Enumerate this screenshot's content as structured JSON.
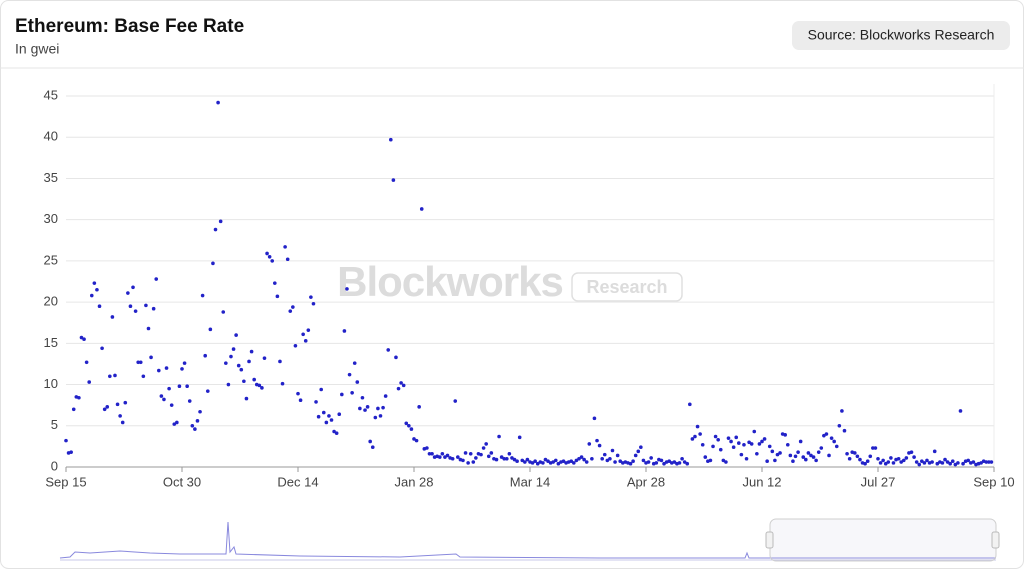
{
  "chart_data": {
    "type": "scatter",
    "title": "Ethereum: Base Fee Rate",
    "subtitle": "In gwei",
    "source": "Source: Blockworks Research",
    "watermark": "Blockworks",
    "watermark_tag": "Research",
    "color": "#2222c8",
    "grid": true,
    "xlim": [
      0,
      360
    ],
    "xticks": [
      {
        "value": 0,
        "label": "Sep 15"
      },
      {
        "value": 45,
        "label": "Oct 30"
      },
      {
        "value": 90,
        "label": "Dec 14"
      },
      {
        "value": 135,
        "label": "Jan 28"
      },
      {
        "value": 180,
        "label": "Mar 14"
      },
      {
        "value": 225,
        "label": "Apr 28"
      },
      {
        "value": 270,
        "label": "Jun 12"
      },
      {
        "value": 315,
        "label": "Jul 27"
      },
      {
        "value": 360,
        "label": "Sep 10"
      }
    ],
    "ylim": [
      0,
      45
    ],
    "yticks": [
      0,
      5,
      10,
      15,
      20,
      25,
      30,
      35,
      40,
      45
    ],
    "x": [
      0,
      1,
      2,
      3,
      4,
      5,
      6,
      7,
      8,
      9,
      10,
      11,
      12,
      13,
      14,
      15,
      16,
      17,
      18,
      19,
      20,
      21,
      22,
      23,
      24,
      25,
      26,
      27,
      28,
      29,
      30,
      31,
      32,
      33,
      34,
      35,
      36,
      37,
      38,
      39,
      40,
      41,
      42,
      43,
      44,
      45,
      46,
      47,
      48,
      49,
      50,
      51,
      52,
      53,
      54,
      55,
      56,
      57,
      58,
      59,
      60,
      61,
      62,
      63,
      64,
      65,
      66,
      67,
      68,
      69,
      70,
      71,
      72,
      73,
      74,
      75,
      76,
      77,
      78,
      79,
      80,
      81,
      82,
      83,
      84,
      85,
      86,
      87,
      88,
      89,
      90,
      91,
      92,
      93,
      94,
      95,
      96,
      97,
      98,
      99,
      100,
      101,
      102,
      103,
      104,
      105,
      106,
      107,
      108,
      109,
      110,
      111,
      112,
      113,
      114,
      115,
      116,
      117,
      118,
      119,
      120,
      121,
      122,
      123,
      124,
      125,
      126,
      127,
      128,
      129,
      130,
      131,
      132,
      133,
      134,
      135,
      136,
      137,
      138,
      139,
      140,
      141,
      142,
      143,
      144,
      145,
      146,
      147,
      148,
      149,
      150,
      151,
      152,
      153,
      154,
      155,
      156,
      157,
      158,
      159,
      160,
      161,
      162,
      163,
      164,
      165,
      166,
      167,
      168,
      169,
      170,
      171,
      172,
      173,
      174,
      175,
      176,
      177,
      178,
      179,
      180,
      181,
      182,
      183,
      184,
      185,
      186,
      187,
      188,
      189,
      190,
      191,
      192,
      193,
      194,
      195,
      196,
      197,
      198,
      199,
      200,
      201,
      202,
      203,
      204,
      205,
      206,
      207,
      208,
      209,
      210,
      211,
      212,
      213,
      214,
      215,
      216,
      217,
      218,
      219,
      220,
      221,
      222,
      223,
      224,
      225,
      226,
      227,
      228,
      229,
      230,
      231,
      232,
      233,
      234,
      235,
      236,
      237,
      238,
      239,
      240,
      241,
      242,
      243,
      244,
      245,
      246,
      247,
      248,
      249,
      250,
      251,
      252,
      253,
      254,
      255,
      256,
      257,
      258,
      259,
      260,
      261,
      262,
      263,
      264,
      265,
      266,
      267,
      268,
      269,
      270,
      271,
      272,
      273,
      274,
      275,
      276,
      277,
      278,
      279,
      280,
      281,
      282,
      283,
      284,
      285,
      286,
      287,
      288,
      289,
      290,
      291,
      292,
      293,
      294,
      295,
      296,
      297,
      298,
      299,
      300,
      301,
      302,
      303,
      304,
      305,
      306,
      307,
      308,
      309,
      310,
      311,
      312,
      313,
      314,
      315,
      316,
      317,
      318,
      319,
      320,
      321,
      322,
      323,
      324,
      325,
      326,
      327,
      328,
      329,
      330,
      331,
      332,
      333,
      334,
      335,
      336,
      337,
      338,
      339,
      340,
      341,
      342,
      343,
      344,
      345,
      346,
      347,
      348,
      349,
      350,
      351,
      352,
      353,
      354,
      355,
      356,
      357,
      358,
      359
    ],
    "values": [
      3.2,
      1.7,
      1.8,
      7.0,
      8.5,
      8.4,
      15.7,
      15.5,
      12.7,
      10.3,
      20.8,
      22.3,
      21.5,
      19.5,
      14.4,
      7.0,
      7.3,
      11.0,
      18.2,
      11.1,
      7.6,
      6.2,
      5.4,
      7.8,
      21.1,
      19.5,
      21.8,
      18.9,
      12.7,
      12.7,
      11.0,
      19.6,
      16.8,
      13.3,
      19.2,
      22.8,
      11.7,
      8.6,
      8.2,
      12.0,
      9.5,
      7.5,
      5.2,
      5.4,
      9.8,
      11.9,
      12.6,
      9.8,
      8.0,
      5.0,
      4.6,
      5.6,
      6.7,
      20.8,
      13.5,
      9.2,
      16.7,
      24.7,
      28.8,
      44.2,
      29.8,
      18.8,
      12.6,
      10.0,
      13.4,
      14.3,
      16.0,
      12.3,
      11.8,
      10.4,
      8.3,
      12.8,
      14.0,
      10.6,
      10.0,
      9.9,
      9.6,
      13.2,
      25.9,
      25.5,
      25.0,
      22.3,
      20.7,
      12.8,
      10.1,
      26.7,
      25.2,
      18.9,
      19.4,
      14.7,
      8.9,
      8.1,
      16.1,
      15.3,
      16.6,
      20.6,
      19.8,
      7.9,
      6.1,
      9.4,
      6.6,
      5.4,
      6.2,
      5.7,
      4.3,
      4.1,
      6.4,
      8.8,
      16.5,
      21.6,
      11.2,
      9.0,
      12.6,
      10.3,
      7.1,
      8.4,
      6.9,
      7.3,
      3.1,
      2.4,
      6.0,
      7.1,
      6.2,
      7.2,
      8.6,
      14.2,
      39.7,
      34.8,
      13.3,
      9.5,
      10.2,
      9.9,
      5.3,
      5.0,
      4.6,
      3.4,
      3.2,
      7.3,
      31.3,
      2.2,
      2.3,
      1.6,
      1.6,
      1.2,
      1.3,
      1.2,
      1.6,
      1.2,
      1.4,
      1.1,
      1.0,
      8.0,
      1.2,
      0.9,
      0.8,
      1.7,
      0.5,
      1.6,
      0.6,
      1.1,
      1.6,
      1.5,
      2.3,
      2.8,
      1.3,
      1.7,
      1.0,
      0.9,
      3.7,
      1.2,
      1.0,
      1.0,
      1.6,
      1.1,
      0.9,
      0.7,
      3.6,
      0.8,
      0.6,
      0.9,
      0.6,
      0.5,
      0.7,
      0.4,
      0.6,
      0.5,
      0.9,
      0.7,
      0.5,
      0.6,
      0.8,
      0.4,
      0.6,
      0.7,
      0.5,
      0.6,
      0.7,
      0.5,
      0.8,
      1.0,
      1.2,
      0.9,
      0.6,
      2.8,
      1.0,
      5.9,
      3.2,
      2.6,
      1.0,
      1.5,
      0.8,
      1.0,
      2.0,
      0.6,
      1.4,
      0.7,
      0.5,
      0.6,
      0.5,
      0.4,
      0.7,
      1.4,
      1.9,
      2.4,
      0.8,
      0.5,
      0.6,
      1.1,
      0.4,
      0.5,
      0.9,
      0.8,
      0.4,
      0.6,
      0.7,
      0.5,
      0.6,
      0.4,
      0.5,
      1.0,
      0.6,
      0.4,
      7.6,
      3.4,
      3.7,
      4.9,
      4.0,
      2.7,
      1.2,
      0.7,
      0.8,
      2.5,
      3.7,
      3.3,
      2.1,
      0.8,
      0.6,
      3.5,
      3.1,
      2.4,
      3.6,
      2.9,
      1.5,
      2.7,
      1.0,
      3.0,
      2.8,
      4.3,
      1.6,
      2.8,
      3.1,
      3.4,
      0.7,
      2.5,
      1.9,
      0.8,
      1.5,
      1.7,
      4.0,
      3.9,
      2.7,
      1.4,
      0.7,
      1.3,
      1.8,
      3.1,
      1.2,
      0.9,
      1.7,
      1.4,
      1.2,
      0.8,
      1.8,
      2.3,
      3.8,
      4.0,
      1.4,
      3.5,
      3.1,
      2.5,
      5.0,
      6.8,
      4.4,
      1.6,
      1.0,
      1.8,
      1.7,
      1.3,
      0.9,
      0.5,
      0.4,
      0.7,
      1.3,
      2.3,
      2.3,
      1.0,
      0.5,
      0.8,
      0.4,
      0.6,
      1.1,
      0.5,
      0.9,
      1.0,
      0.6,
      0.8,
      1.1,
      1.7,
      1.8,
      1.2,
      0.6,
      0.3,
      0.7,
      0.5,
      0.8,
      0.5,
      0.6,
      1.9,
      0.4,
      0.6,
      0.5,
      0.9,
      0.6,
      0.4,
      0.7,
      0.3,
      0.5,
      6.8,
      0.4,
      0.7,
      0.8,
      0.5,
      0.6,
      0.3,
      0.4,
      0.5,
      0.7,
      0.6,
      0.6,
      0.6
    ]
  }
}
